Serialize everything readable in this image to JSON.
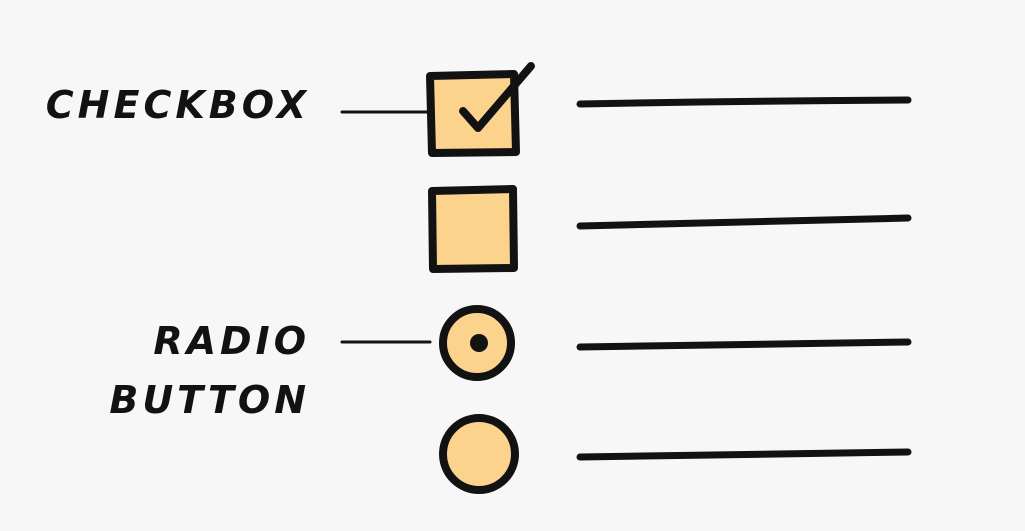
{
  "annotations": {
    "checkbox": "CHECKBOX",
    "radio_line_1": "RADIO",
    "radio_line_2": "BUTTON"
  },
  "options": [
    {
      "control": "checkbox",
      "checked": true
    },
    {
      "control": "checkbox",
      "checked": false
    },
    {
      "control": "radio",
      "selected": true
    },
    {
      "control": "radio",
      "selected": false
    }
  ],
  "colors": {
    "background": "#f7f7f7",
    "ink": "#121212",
    "control_fill": "#fbd38d"
  },
  "icons": {
    "checked_mark": "check-icon",
    "radio_dot": "radio-dot-icon"
  }
}
